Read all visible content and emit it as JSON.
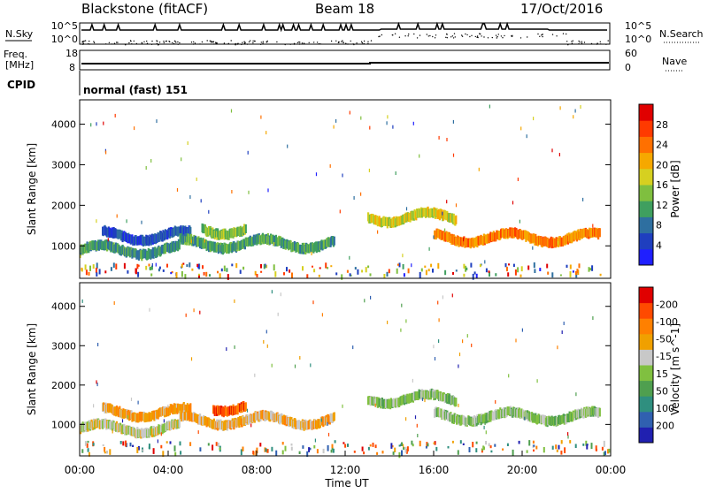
{
  "header": {
    "station": "Blackstone (fitACF)",
    "beam": "Beam 18",
    "date": "17/Oct/2016"
  },
  "panels": {
    "nsky": {
      "label": "N.Sky",
      "right_label": "N.Search",
      "ticks": [
        "10^5",
        "10^0"
      ]
    },
    "freq": {
      "label1": "Freq.",
      "label2": "[MHz]",
      "left_ticks": [
        "18",
        "8"
      ],
      "right_ticks": [
        "60",
        "0"
      ],
      "right_label": "Nave"
    },
    "cpid": {
      "label": "CPID",
      "text": "normal (fast) 151"
    }
  },
  "chart_data": [
    {
      "type": "heatmap",
      "title": "Power",
      "ylabel": "Slant Range [km]",
      "xlabel": "Time UT",
      "x_ticks": [
        "00:00",
        "04:00",
        "08:00",
        "12:00",
        "16:00",
        "20:00",
        "00:00"
      ],
      "y_ticks": [
        1000,
        2000,
        3000,
        4000
      ],
      "ylim": [
        200,
        4600
      ],
      "colorbar": {
        "label": "Power [dB]",
        "ticks": [
          "4",
          "8",
          "12",
          "16",
          "20",
          "24",
          "28"
        ],
        "colors": [
          "#1f1fff",
          "#1f3fbf",
          "#2e6fa0",
          "#3f9f5f",
          "#7fbf3f",
          "#d6d020",
          "#f6a800",
          "#ff7000",
          "#ff3a00",
          "#e00000"
        ]
      },
      "bands": [
        {
          "time_start": 0.0,
          "time_end": 4.5,
          "range": 900,
          "level": 0.3
        },
        {
          "time_start": 1.0,
          "time_end": 5.0,
          "range": 1250,
          "level": 0.15
        },
        {
          "time_start": 4.5,
          "time_end": 11.5,
          "range": 1050,
          "level": 0.35
        },
        {
          "time_start": 5.5,
          "time_end": 7.5,
          "range": 1400,
          "level": 0.45
        },
        {
          "time_start": 13.0,
          "time_end": 17.0,
          "range": 1700,
          "level": 0.55
        },
        {
          "time_start": 16.0,
          "time_end": 23.5,
          "range": 1200,
          "level": 0.75
        }
      ]
    },
    {
      "type": "heatmap",
      "title": "Velocity",
      "ylabel": "Slant Range [km]",
      "xlabel": "Time UT",
      "x_ticks": [
        "00:00",
        "04:00",
        "08:00",
        "12:00",
        "16:00",
        "20:00",
        "00:00"
      ],
      "y_ticks": [
        1000,
        2000,
        3000,
        4000
      ],
      "ylim": [
        200,
        4600
      ],
      "colorbar": {
        "label": "Velocity [m s^-1]",
        "ticks": [
          "200",
          "100",
          "50",
          "15",
          "-15",
          "-50",
          "-100",
          "-200"
        ],
        "colors": [
          "#2020b0",
          "#3060b0",
          "#2f8f7f",
          "#4f9f4f",
          "#80c040",
          "#c8c8c8",
          "#f0a000",
          "#ff8000",
          "#ff4a00",
          "#e00000"
        ]
      },
      "bands": [
        {
          "time_start": 0.0,
          "time_end": 4.5,
          "range": 900,
          "level": 0.55
        },
        {
          "time_start": 1.0,
          "time_end": 5.0,
          "range": 1300,
          "level": 0.7
        },
        {
          "time_start": 4.5,
          "time_end": 11.5,
          "range": 1100,
          "level": 0.65
        },
        {
          "time_start": 6.0,
          "time_end": 7.5,
          "range": 1450,
          "level": 0.9
        },
        {
          "time_start": 13.0,
          "time_end": 17.0,
          "range": 1650,
          "level": 0.45
        },
        {
          "time_start": 16.0,
          "time_end": 23.5,
          "range": 1200,
          "level": 0.45
        }
      ]
    }
  ]
}
